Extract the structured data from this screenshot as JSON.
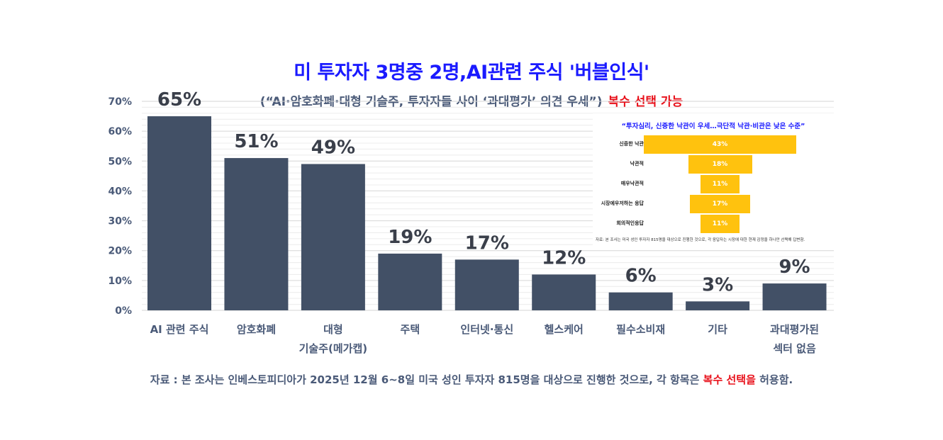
{
  "title": "미 투자자 3명중 2명,AI관련 주식 '버블인식'",
  "subtitle": "(“AI·암호화폐·대형 기술주, 투자자들 사이 ‘과대평가’ 의견 우세”)",
  "subtitle_note": "복수 선택 가능",
  "colors": {
    "bar": "#425066",
    "inset_bar": "#ffc20e",
    "title": "#1a1aff",
    "highlight": "#e8101a",
    "text": "#4a5a78"
  },
  "chart_data": [
    {
      "type": "bar",
      "title": "미 투자자 3명중 2명,AI관련 주식 '버블인식'",
      "categories": [
        [
          "AI 관련 주식"
        ],
        [
          "암호화폐"
        ],
        [
          "대형",
          "기술주(메가캡)"
        ],
        [
          "주택"
        ],
        [
          "인터넷·통신"
        ],
        [
          "헬스케어"
        ],
        [
          "필수소비재"
        ],
        [
          "기타"
        ],
        [
          "과대평가된",
          "섹터 없음"
        ]
      ],
      "values": [
        65,
        51,
        49,
        19,
        17,
        12,
        6,
        3,
        9
      ],
      "value_labels": [
        "65%",
        "51%",
        "49%",
        "19%",
        "17%",
        "12%",
        "6%",
        "3%",
        "9%"
      ],
      "ylim": [
        0,
        70
      ],
      "yticks": [
        0,
        10,
        20,
        30,
        40,
        50,
        60,
        70
      ],
      "ytick_labels": [
        "0%",
        "10%",
        "20%",
        "30%",
        "40%",
        "50%",
        "60%",
        "70%"
      ],
      "xlabel": "",
      "ylabel": "",
      "grid": true
    },
    {
      "type": "bar",
      "orientation": "horizontal",
      "title": "“투자심리, 신중한 낙관이 우세…극단적 낙관·비관은 낮은 수준”",
      "categories": [
        "신중한 낙관",
        "낙관적",
        "매우낙관적",
        "시장에우저하는 응답",
        "회의적인응답"
      ],
      "values": [
        43,
        18,
        11,
        17,
        11
      ],
      "value_labels": [
        "43%",
        "18%",
        "11%",
        "17%",
        "11%"
      ],
      "footnote": "자료: 본 조사는 미국 성인 투자자 815명을 대상으로 진행한 것으로, 각 응답자는 시장에 대한 현재 감정을 하나만 선택해 답변함."
    }
  ],
  "note": {
    "prefix": "자료 : 본 조사는 인베스토피디아가 2025년 12월 6~8일 미국 성인 투자자 815명을 대상으로 진행한 것으로, 각 항목은 ",
    "highlight": "복수 선택을",
    "suffix": " 허용함."
  }
}
